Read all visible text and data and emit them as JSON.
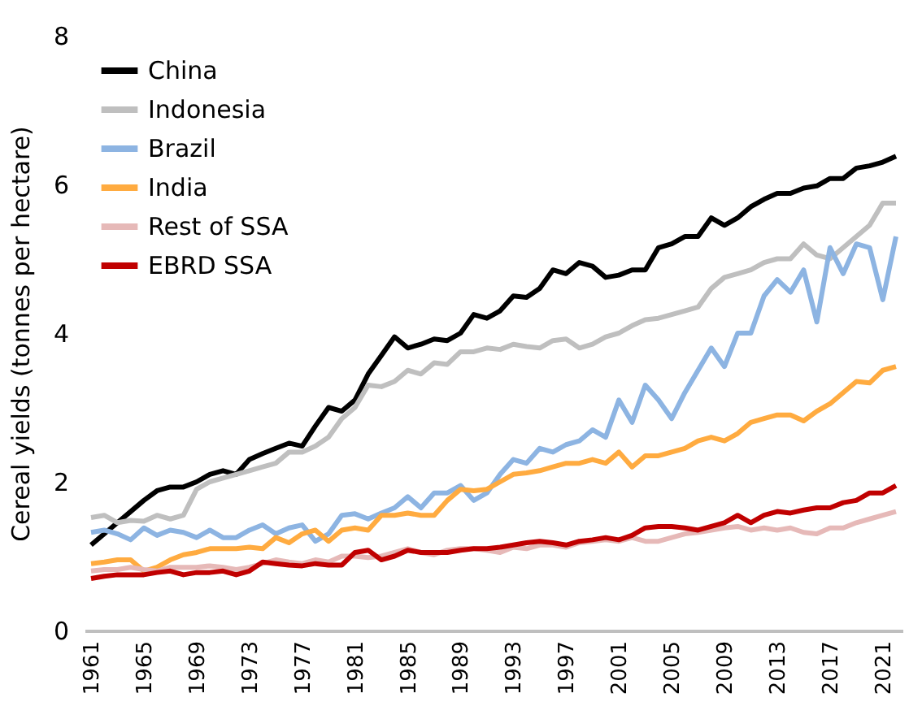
{
  "chart_data": {
    "type": "line",
    "ylabel": "Cereal yields (tonnes per hectare)",
    "categories": [
      "1961",
      null,
      null,
      null,
      "1965",
      null,
      null,
      null,
      "1969",
      null,
      null,
      null,
      "1973",
      null,
      null,
      null,
      "1977",
      null,
      null,
      null,
      "1981",
      null,
      null,
      null,
      "1985",
      null,
      null,
      null,
      "1989",
      null,
      null,
      null,
      "1993",
      null,
      null,
      null,
      "1997",
      null,
      null,
      null,
      "2001",
      null,
      null,
      null,
      "2005",
      null,
      null,
      null,
      "2009",
      null,
      null,
      null,
      "2013",
      null,
      null,
      null,
      "2017",
      null,
      null,
      null,
      "2021",
      null
    ],
    "series": [
      {
        "name": "China",
        "color": "#000000",
        "values": [
          1.15,
          1.3,
          1.45,
          1.6,
          1.75,
          1.88,
          1.93,
          1.93,
          2.0,
          2.1,
          2.15,
          2.1,
          2.3,
          2.38,
          2.45,
          2.52,
          2.48,
          2.75,
          3.0,
          2.95,
          3.1,
          3.45,
          3.7,
          3.95,
          3.8,
          3.85,
          3.92,
          3.9,
          4.0,
          4.25,
          4.2,
          4.3,
          4.5,
          4.48,
          4.6,
          4.85,
          4.8,
          4.95,
          4.9,
          4.75,
          4.78,
          4.85,
          4.85,
          5.15,
          5.2,
          5.3,
          5.3,
          5.55,
          5.45,
          5.55,
          5.7,
          5.8,
          5.88,
          5.88,
          5.95,
          5.98,
          6.08,
          6.08,
          6.22,
          6.25,
          6.3,
          6.38
        ]
      },
      {
        "name": "Indonesia",
        "color": "#bfbfbf",
        "values": [
          1.52,
          1.55,
          1.45,
          1.48,
          1.47,
          1.55,
          1.5,
          1.55,
          1.9,
          2.0,
          2.05,
          2.1,
          2.15,
          2.2,
          2.25,
          2.4,
          2.4,
          2.48,
          2.6,
          2.85,
          3.0,
          3.3,
          3.28,
          3.35,
          3.5,
          3.45,
          3.6,
          3.58,
          3.75,
          3.75,
          3.8,
          3.78,
          3.85,
          3.82,
          3.8,
          3.9,
          3.92,
          3.8,
          3.85,
          3.95,
          4.0,
          4.1,
          4.18,
          4.2,
          4.25,
          4.3,
          4.35,
          4.6,
          4.75,
          4.8,
          4.85,
          4.95,
          5.0,
          5.0,
          5.2,
          5.05,
          5.0,
          5.15,
          5.3,
          5.45,
          5.75,
          5.75
        ]
      },
      {
        "name": "Brazil",
        "color": "#8db4e2",
        "values": [
          1.32,
          1.35,
          1.3,
          1.22,
          1.38,
          1.28,
          1.35,
          1.32,
          1.25,
          1.35,
          1.25,
          1.25,
          1.35,
          1.42,
          1.3,
          1.38,
          1.42,
          1.2,
          1.3,
          1.55,
          1.57,
          1.5,
          1.58,
          1.65,
          1.8,
          1.65,
          1.85,
          1.85,
          1.95,
          1.75,
          1.85,
          2.1,
          2.3,
          2.25,
          2.45,
          2.4,
          2.5,
          2.55,
          2.7,
          2.6,
          3.1,
          2.8,
          3.3,
          3.1,
          2.85,
          3.2,
          3.5,
          3.8,
          3.55,
          4.0,
          4.0,
          4.5,
          4.72,
          4.55,
          4.85,
          4.15,
          5.15,
          4.8,
          5.2,
          5.15,
          4.45,
          5.3
        ]
      },
      {
        "name": "India",
        "color": "#ffab40",
        "values": [
          0.9,
          0.92,
          0.95,
          0.95,
          0.8,
          0.85,
          0.95,
          1.02,
          1.05,
          1.1,
          1.1,
          1.1,
          1.12,
          1.1,
          1.25,
          1.18,
          1.3,
          1.35,
          1.2,
          1.35,
          1.38,
          1.35,
          1.55,
          1.55,
          1.58,
          1.55,
          1.55,
          1.75,
          1.9,
          1.88,
          1.9,
          2.0,
          2.1,
          2.12,
          2.15,
          2.2,
          2.25,
          2.25,
          2.3,
          2.25,
          2.4,
          2.2,
          2.35,
          2.35,
          2.4,
          2.45,
          2.55,
          2.6,
          2.55,
          2.65,
          2.8,
          2.85,
          2.9,
          2.9,
          2.82,
          2.95,
          3.05,
          3.2,
          3.35,
          3.33,
          3.5,
          3.55
        ]
      },
      {
        "name": "Rest of SSA",
        "color": "#e6b9b8",
        "values": [
          0.8,
          0.82,
          0.82,
          0.85,
          0.82,
          0.8,
          0.85,
          0.85,
          0.85,
          0.87,
          0.85,
          0.82,
          0.85,
          0.9,
          0.95,
          0.92,
          0.9,
          0.95,
          0.92,
          1.0,
          1.0,
          0.98,
          1.0,
          1.05,
          1.1,
          1.05,
          1.02,
          1.08,
          1.1,
          1.1,
          1.08,
          1.05,
          1.12,
          1.1,
          1.15,
          1.15,
          1.12,
          1.18,
          1.2,
          1.22,
          1.2,
          1.25,
          1.2,
          1.2,
          1.25,
          1.3,
          1.32,
          1.35,
          1.38,
          1.4,
          1.35,
          1.38,
          1.35,
          1.38,
          1.32,
          1.3,
          1.38,
          1.38,
          1.45,
          1.5,
          1.55,
          1.6
        ]
      },
      {
        "name": "EBRD SSA",
        "color": "#c00000",
        "values": [
          0.7,
          0.73,
          0.75,
          0.75,
          0.75,
          0.78,
          0.8,
          0.75,
          0.78,
          0.78,
          0.8,
          0.75,
          0.8,
          0.92,
          0.9,
          0.88,
          0.87,
          0.9,
          0.88,
          0.88,
          1.05,
          1.08,
          0.95,
          1.0,
          1.08,
          1.05,
          1.05,
          1.05,
          1.08,
          1.1,
          1.1,
          1.12,
          1.15,
          1.18,
          1.2,
          1.18,
          1.15,
          1.2,
          1.22,
          1.25,
          1.22,
          1.28,
          1.38,
          1.4,
          1.4,
          1.38,
          1.35,
          1.4,
          1.45,
          1.55,
          1.45,
          1.55,
          1.6,
          1.58,
          1.62,
          1.65,
          1.65,
          1.72,
          1.75,
          1.85,
          1.85,
          1.95
        ]
      }
    ],
    "ylim": [
      0,
      8
    ],
    "yticks": [
      0,
      2,
      4,
      6,
      8
    ],
    "grid": false,
    "legend": "top left",
    "marker": "none",
    "line_style": "solid"
  }
}
